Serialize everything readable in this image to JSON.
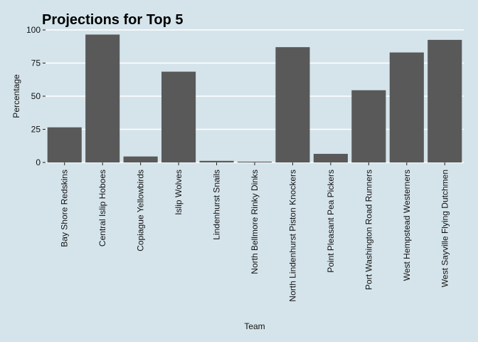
{
  "chart_data": {
    "type": "bar",
    "title": "Projections for Top 5",
    "xlabel": "Team",
    "ylabel": "Percentage",
    "categories": [
      "Bay Shore Redskins",
      "Central Islip Hoboes",
      "Copiague Yellowbirds",
      "Islip Wolves",
      "Lindenhurst Snails",
      "North Bellmore Rinky Dinks",
      "North Lindenhurst Piston Knockers",
      "Point Pleasant Pea Pickers",
      "Port Washington Road Runners",
      "West Hempstead Westerners",
      "West Sayville Flying Dutchmen"
    ],
    "values": [
      26.5,
      96.5,
      4.5,
      68.5,
      1.2,
      0.6,
      87,
      6.5,
      54.5,
      83,
      92.5
    ],
    "ylim": [
      0,
      100
    ],
    "yticks": [
      0,
      25,
      50,
      75,
      100
    ],
    "grid": true,
    "legend": "none",
    "colors": {
      "background": "#d5e4eb",
      "bar": "#595959",
      "grid": "#ffffff"
    }
  }
}
